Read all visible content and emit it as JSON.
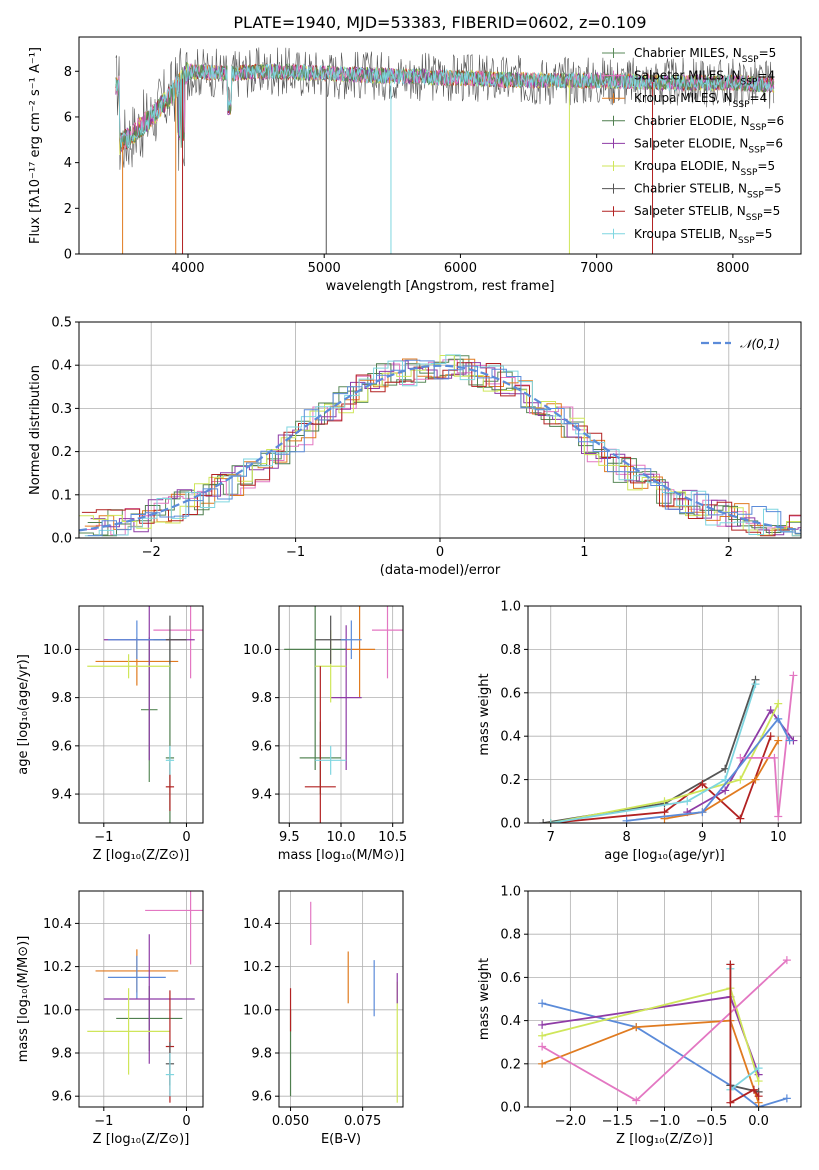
{
  "figure": {
    "title": "PLATE=1940, MJD=53383, FIBERID=0602, z=0.109"
  },
  "colors": {
    "Chabrier MILES": "#5a8a5a",
    "Salpeter MILES": "#e377c2",
    "Kroupa MILES": "#e07b20",
    "Chabrier ELODIE": "#4f7f4f",
    "Salpeter ELODIE": "#8e3ba6",
    "Kroupa ELODIE": "#cfe65a",
    "Chabrier STELIB": "#555555",
    "Salpeter STELIB": "#b22222",
    "Kroupa STELIB": "#7fd6e0",
    "normal": "#5b8bd9"
  },
  "chart_data": [
    {
      "type": "line",
      "title": "PLATE=1940, MJD=53383, FIBERID=0602, z=0.109",
      "xlabel": "wavelength [Angstrom, rest frame]",
      "ylabel": "Flux [fλ10⁻¹⁷ erg cm⁻² s⁻¹ A⁻¹]",
      "xlim": [
        3200,
        8500
      ],
      "ylim": [
        0,
        9.5
      ],
      "xticks": [
        4000,
        5000,
        6000,
        7000,
        8000
      ],
      "yticks": [
        0,
        2,
        4,
        6,
        8
      ],
      "grid": false,
      "legend_position": "top-right",
      "series": [
        {
          "name": "Chabrier MILES, N_SSP=5"
        },
        {
          "name": "Salpeter MILES, N_SSP=4"
        },
        {
          "name": "Kroupa MILES, N_SSP=4"
        },
        {
          "name": "Chabrier ELODIE, N_SSP=6"
        },
        {
          "name": "Salpeter ELODIE, N_SSP=6"
        },
        {
          "name": "Kroupa ELODIE, N_SSP=5"
        },
        {
          "name": "Chabrier STELIB, N_SSP=5"
        },
        {
          "name": "Salpeter STELIB, N_SSP=5"
        },
        {
          "name": "Kroupa STELIB, N_SSP=5"
        }
      ],
      "continuum": {
        "x": [
          3500,
          3700,
          3850,
          4000,
          4300,
          4600,
          5000,
          5500,
          6000,
          6500,
          7000,
          7500,
          8000,
          8300
        ],
        "y": [
          4.8,
          5.8,
          6.8,
          8.0,
          7.9,
          8.0,
          7.9,
          7.8,
          7.7,
          7.6,
          7.6,
          7.5,
          7.5,
          7.4
        ]
      }
    },
    {
      "type": "bar",
      "xlabel": "(data-model)/error",
      "ylabel": "Normed distribution",
      "xlim": [
        -2.5,
        2.5
      ],
      "ylim": [
        0,
        0.5
      ],
      "xticks": [
        -2,
        -1,
        0,
        1,
        2
      ],
      "yticks": [
        0.0,
        0.1,
        0.2,
        0.3,
        0.4,
        0.5
      ],
      "grid": true,
      "legend": "𝒩(0,1)",
      "legend_position": "top-right",
      "histogram_shape": {
        "x": [
          -2.4,
          -2.0,
          -1.6,
          -1.2,
          -0.8,
          -0.4,
          0.0,
          0.4,
          0.8,
          1.2,
          1.6,
          2.0,
          2.4
        ],
        "y": [
          0.03,
          0.05,
          0.1,
          0.17,
          0.29,
          0.37,
          0.4,
          0.37,
          0.29,
          0.17,
          0.1,
          0.05,
          0.03
        ]
      }
    },
    {
      "type": "scatter",
      "xlabel": "Z [log₁₀(Z/Z⊙)]",
      "ylabel": "age  [log₁₀(age/yr)]",
      "xlim": [
        -1.3,
        0.2
      ],
      "ylim": [
        9.28,
        10.18
      ],
      "xticks": [
        -1,
        0
      ],
      "yticks": [
        9.4,
        9.6,
        9.8,
        10.0
      ],
      "grid": true,
      "series": [
        {
          "model": "Chabrier MILES",
          "x": -0.45,
          "y": 9.75,
          "xerr": 0.1,
          "yerr": 0.3
        },
        {
          "model": "Salpeter MILES",
          "x": 0.05,
          "y": 10.08,
          "xerr": 0.45,
          "yerr": 0.2
        },
        {
          "model": "Kroupa MILES",
          "x": -0.6,
          "y": 9.95,
          "xerr": 0.5,
          "yerr": 0.1
        },
        {
          "model": "Chabrier ELODIE",
          "x": -0.2,
          "y": 9.55,
          "xerr": 0.05,
          "yerr": 0.5
        },
        {
          "model": "Salpeter ELODIE",
          "x": -0.45,
          "y": 10.04,
          "xerr": 0.55,
          "yerr": 0.5
        },
        {
          "model": "Kroupa ELODIE",
          "x": -0.7,
          "y": 9.93,
          "xerr": 0.5,
          "yerr": 0.05
        },
        {
          "model": "Chabrier STELIB",
          "x": -0.2,
          "y": 10.04,
          "xerr": 0.2,
          "yerr": 0.1
        },
        {
          "model": "Salpeter STELIB",
          "x": -0.2,
          "y": 9.43,
          "xerr": 0.05,
          "yerr": 0.1
        },
        {
          "model": "Kroupa STELIB",
          "x": -0.2,
          "y": 9.54,
          "xerr": 0.05,
          "yerr": 0.06
        },
        {
          "model": "normal",
          "x": -0.6,
          "y": 10.04,
          "xerr": 0.35,
          "yerr": 0.08
        }
      ]
    },
    {
      "type": "scatter",
      "xlabel": "mass [log₁₀(M/M⊙)]",
      "ylabel": "",
      "xlim": [
        9.4,
        10.6
      ],
      "ylim": [
        9.28,
        10.18
      ],
      "xticks": [
        9.5,
        10.0,
        10.5
      ],
      "yticks": [
        9.4,
        9.6,
        9.8,
        10.0
      ],
      "grid": true,
      "series": [
        {
          "model": "Chabrier MILES",
          "x": 9.8,
          "y": 9.55,
          "xerr": 0.2,
          "yerr": 0.15
        },
        {
          "model": "Salpeter MILES",
          "x": 10.45,
          "y": 10.08,
          "xerr": 0.15,
          "yerr": 0.2
        },
        {
          "model": "Kroupa MILES",
          "x": 10.18,
          "y": 10.0,
          "xerr": 0.15,
          "yerr": 0.2
        },
        {
          "model": "Chabrier ELODIE",
          "x": 9.75,
          "y": 10.0,
          "xerr": 0.3,
          "yerr": 0.5
        },
        {
          "model": "Salpeter ELODIE",
          "x": 10.05,
          "y": 9.8,
          "xerr": 0.15,
          "yerr": 0.3
        },
        {
          "model": "Kroupa ELODIE",
          "x": 9.9,
          "y": 9.93,
          "xerr": 0.15,
          "yerr": 0.15
        },
        {
          "model": "Chabrier STELIB",
          "x": 9.9,
          "y": 10.04,
          "xerr": 0.15,
          "yerr": 0.1
        },
        {
          "model": "Salpeter STELIB",
          "x": 9.8,
          "y": 9.43,
          "xerr": 0.15,
          "yerr": 0.5
        },
        {
          "model": "Kroupa STELIB",
          "x": 9.9,
          "y": 9.54,
          "xerr": 0.15,
          "yerr": 0.06
        },
        {
          "model": "normal",
          "x": 10.1,
          "y": 10.04,
          "xerr": 0.1,
          "yerr": 0.08
        }
      ]
    },
    {
      "type": "line",
      "xlabel": "age  [log₁₀(age/yr)]",
      "ylabel": "mass weight",
      "xlim": [
        6.7,
        10.3
      ],
      "ylim": [
        0,
        1.0
      ],
      "xticks": [
        7,
        8,
        9,
        10
      ],
      "yticks": [
        0.0,
        0.2,
        0.4,
        0.6,
        0.8,
        1.0
      ],
      "grid": true,
      "series": [
        {
          "model": "Chabrier STELIB",
          "x": [
            6.9,
            8.5,
            9.3,
            9.7
          ],
          "y": [
            0.0,
            0.09,
            0.25,
            0.66
          ]
        },
        {
          "model": "Salpeter STELIB",
          "x": [
            7.0,
            8.5,
            9.0,
            9.5,
            9.9
          ],
          "y": [
            0.0,
            0.05,
            0.18,
            0.02,
            0.4
          ]
        },
        {
          "model": "Salpeter ELODIE",
          "x": [
            8.8,
            9.3,
            9.9,
            10.2
          ],
          "y": [
            0.05,
            0.15,
            0.52,
            0.38
          ]
        },
        {
          "model": "Kroupa ELODIE",
          "x": [
            7.0,
            8.5,
            9.5,
            10.0
          ],
          "y": [
            0.0,
            0.1,
            0.2,
            0.55
          ]
        },
        {
          "model": "Kroupa MILES",
          "x": [
            8.5,
            9.0,
            9.7,
            10.0
          ],
          "y": [
            0.02,
            0.05,
            0.2,
            0.38
          ]
        },
        {
          "model": "Salpeter MILES",
          "x": [
            9.5,
            9.95,
            10.0,
            10.2
          ],
          "y": [
            0.3,
            0.3,
            0.03,
            0.68
          ]
        },
        {
          "model": "Kroupa STELIB",
          "x": [
            7.0,
            8.8,
            9.3,
            9.7
          ],
          "y": [
            0.0,
            0.1,
            0.2,
            0.64
          ]
        },
        {
          "model": "normal",
          "x": [
            8.0,
            9.0,
            10.0,
            10.15
          ],
          "y": [
            0.01,
            0.05,
            0.48,
            0.38
          ]
        }
      ]
    },
    {
      "type": "scatter",
      "xlabel": "Z [log₁₀(Z/Z⊙)]",
      "ylabel": "mass [log₁₀(M/M⊙)]",
      "xlim": [
        -1.3,
        0.2
      ],
      "ylim": [
        9.55,
        10.55
      ],
      "xticks": [
        -1,
        0
      ],
      "yticks": [
        9.6,
        9.8,
        10.0,
        10.2,
        10.4
      ],
      "grid": true,
      "series": [
        {
          "model": "Salpeter MILES",
          "x": 0.05,
          "y": 10.46,
          "xerr": 0.55,
          "yerr": 0.25
        },
        {
          "model": "Kroupa MILES",
          "x": -0.6,
          "y": 10.18,
          "xerr": 0.5,
          "yerr": 0.1
        },
        {
          "model": "normal",
          "x": -0.6,
          "y": 10.15,
          "xerr": 0.35,
          "yerr": 0.1
        },
        {
          "model": "Chabrier ELODIE",
          "x": -0.45,
          "y": 9.96,
          "xerr": 0.4,
          "yerr": 0.15
        },
        {
          "model": "Salpeter ELODIE",
          "x": -0.45,
          "y": 10.05,
          "xerr": 0.55,
          "yerr": 0.3
        },
        {
          "model": "Kroupa ELODIE",
          "x": -0.7,
          "y": 9.9,
          "xerr": 0.5,
          "yerr": 0.2
        },
        {
          "model": "Salpeter STELIB",
          "x": -0.2,
          "y": 9.83,
          "xerr": 0.05,
          "yerr": 0.26
        },
        {
          "model": "Chabrier STELIB",
          "x": -0.2,
          "y": 9.75,
          "xerr": 0.05,
          "yerr": 0.1
        },
        {
          "model": "Kroupa STELIB",
          "x": -0.2,
          "y": 9.7,
          "xerr": 0.05,
          "yerr": 0.1
        }
      ]
    },
    {
      "type": "scatter",
      "xlabel": "E(B-V)",
      "ylabel": "",
      "xlim": [
        0.046,
        0.089
      ],
      "ylim": [
        9.55,
        10.55
      ],
      "xticks": [
        0.05,
        0.075
      ],
      "xticklabels": [
        "0.050",
        "0.075"
      ],
      "yticks": [
        9.6,
        9.8,
        10.0,
        10.2,
        10.4
      ],
      "grid": true,
      "series": [
        {
          "model": "Chabrier ELODIE",
          "x": 0.05,
          "y": 9.8,
          "yerr": 0.2
        },
        {
          "model": "Salpeter STELIB",
          "x": 0.05,
          "y": 10.0,
          "yerr": 0.1
        },
        {
          "model": "Salpeter MILES",
          "x": 0.057,
          "y": 10.4,
          "yerr": 0.1
        },
        {
          "model": "Kroupa MILES",
          "x": 0.07,
          "y": 10.15,
          "yerr": 0.12
        },
        {
          "model": "normal",
          "x": 0.079,
          "y": 10.1,
          "yerr": 0.13
        },
        {
          "model": "Kroupa ELODIE",
          "x": 0.087,
          "y": 9.85,
          "yerr": 0.28
        },
        {
          "model": "Salpeter ELODIE",
          "x": 0.087,
          "y": 10.1,
          "yerr": 0.07
        }
      ]
    },
    {
      "type": "line",
      "xlabel": "Z [log₁₀(Z/Z⊙)]",
      "ylabel": "mass weight",
      "xlim": [
        -2.45,
        0.45
      ],
      "ylim": [
        0,
        1.0
      ],
      "xticks": [
        -2.0,
        -1.5,
        -1.0,
        -0.5,
        0.0
      ],
      "yticks": [
        0.0,
        0.2,
        0.4,
        0.6,
        0.8,
        1.0
      ],
      "grid": true,
      "series": [
        {
          "model": "normal",
          "x": [
            -2.3,
            -1.3,
            -0.3,
            0.0,
            0.3
          ],
          "y": [
            0.48,
            0.37,
            0.1,
            0.0,
            0.04
          ]
        },
        {
          "model": "Salpeter ELODIE",
          "x": [
            -2.3,
            -0.3,
            0.0
          ],
          "y": [
            0.38,
            0.51,
            0.15
          ]
        },
        {
          "model": "Kroupa ELODIE",
          "x": [
            -2.3,
            -0.3,
            0.0
          ],
          "y": [
            0.33,
            0.55,
            0.12
          ]
        },
        {
          "model": "Kroupa MILES",
          "x": [
            -2.3,
            -1.3,
            -0.3,
            0.0
          ],
          "y": [
            0.2,
            0.37,
            0.4,
            0.02
          ]
        },
        {
          "model": "Salpeter MILES",
          "x": [
            -2.3,
            -1.3,
            0.3
          ],
          "y": [
            0.28,
            0.03,
            0.68
          ]
        },
        {
          "model": "Chabrier STELIB",
          "x": [
            -0.3,
            -0.3,
            0.0
          ],
          "y": [
            0.66,
            0.1,
            0.07
          ]
        },
        {
          "model": "Kroupa STELIB",
          "x": [
            -0.3,
            -0.3,
            0.0
          ],
          "y": [
            0.64,
            0.08,
            0.18
          ]
        },
        {
          "model": "Salpeter STELIB",
          "x": [
            -0.3,
            -0.3,
            -0.05,
            0.0
          ],
          "y": [
            0.66,
            0.02,
            0.08,
            0.05
          ]
        }
      ]
    }
  ]
}
